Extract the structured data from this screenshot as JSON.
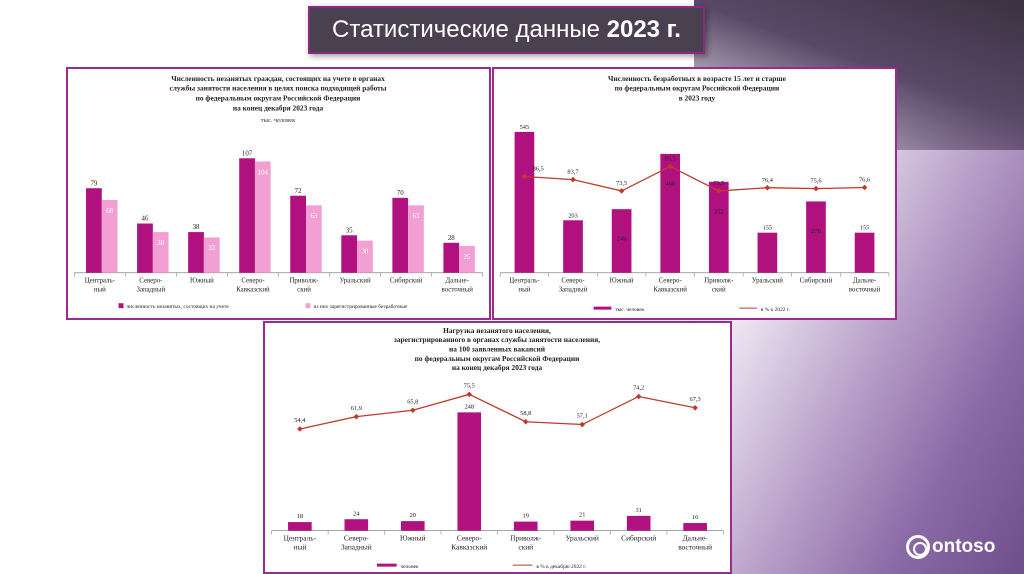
{
  "slide": {
    "title_text": "Статистические данные ",
    "title_year": "2023 г.",
    "logo_text": "ontoso"
  },
  "colors": {
    "magenta": "#b0117f",
    "pink": "#f29fd3",
    "line": "#c0392b",
    "frame": "#9a2b8f"
  },
  "chart_data": [
    {
      "type": "bar",
      "title_lines": [
        "Численность незанятых граждан, состоящих на учете в органах",
        "службы занятости населения в целях поиска подходящей работы",
        "по федеральным округам Российской Федерации",
        "на конец декабря 2023 года"
      ],
      "unit": "тыс. человек",
      "categories": [
        [
          "Централь-",
          "ный"
        ],
        [
          "Северо-",
          "Западный"
        ],
        [
          "Южный"
        ],
        [
          "Северо-",
          "Кавказский"
        ],
        [
          "Приволж-",
          "ский"
        ],
        [
          "Уральский"
        ],
        [
          "Сибирский"
        ],
        [
          "Дальне-",
          "восточный"
        ]
      ],
      "series": [
        {
          "name": "численность незанятых, состоящих на учете",
          "values": [
            79,
            46,
            38,
            107,
            72,
            35,
            70,
            28
          ]
        },
        {
          "name": "из них зарегистрированные безработные",
          "values": [
            68,
            38,
            33,
            104,
            63,
            30,
            63,
            25
          ]
        }
      ],
      "ylim": [
        0,
        115
      ]
    },
    {
      "type": "bar+line",
      "title_lines": [
        "Численность безработных в возрасте 15 лет и старше",
        "по федеральным округам Российской Федерации",
        "в 2023 году"
      ],
      "categories": [
        [
          "Централь-",
          "ный"
        ],
        [
          "Северо-",
          "Западный"
        ],
        [
          "Южный"
        ],
        [
          "Северо-",
          "Кавказский"
        ],
        [
          "Приволж-",
          "ский"
        ],
        [
          "Уральский"
        ],
        [
          "Сибирский"
        ],
        [
          "Дальне-",
          "восточный"
        ]
      ],
      "series": [
        {
          "name": "тыс. человек",
          "kind": "bar",
          "values": [
            545,
            203,
            246,
            460,
            352,
            155,
            276,
            155
          ]
        },
        {
          "name": "в % к 2022 г.",
          "kind": "line",
          "values": [
            86.5,
            83.7,
            73.5,
            95.5,
            73.5,
            76.4,
            75.6,
            76.6
          ]
        }
      ],
      "bar_labels": [
        "545",
        "203",
        "246",
        "460",
        "352",
        "155",
        "276",
        "155"
      ],
      "line_labels": [
        "86,5",
        "83,7",
        "73,5",
        "95,5",
        "73,5",
        "76,4",
        "75,6",
        "76,6"
      ],
      "ylim": [
        0,
        560
      ],
      "y2lim": [
        0,
        130
      ]
    },
    {
      "type": "bar+line",
      "title_lines": [
        "Нагрузка незанятого населения,",
        "зарегистрированного в органах службы занятости населения,",
        "на 100 заявленных вакансий",
        "по федеральным округам Российской Федерации",
        "на конец декабря 2023 года"
      ],
      "categories": [
        [
          "Централь-",
          "ный"
        ],
        [
          "Северо-",
          "Западный"
        ],
        [
          "Южный"
        ],
        [
          "Северо-",
          "Кавказский"
        ],
        [
          "Приволж-",
          "ский"
        ],
        [
          "Уральский"
        ],
        [
          "Сибирский"
        ],
        [
          "Дальне-",
          "восточный"
        ]
      ],
      "series": [
        {
          "name": "человек",
          "kind": "bar",
          "values": [
            18,
            24,
            20,
            248,
            19,
            21,
            31,
            16
          ]
        },
        {
          "name": "в % к декабрю 2022 г.",
          "kind": "line",
          "values": [
            54.4,
            61.9,
            65.8,
            75.5,
            58.8,
            57.1,
            74.2,
            67.3
          ]
        }
      ],
      "bar_labels": [
        "18",
        "24",
        "20",
        "248",
        "19",
        "21",
        "31",
        "16"
      ],
      "line_labels": [
        "54,4",
        "61,9",
        "65,8",
        "75,5",
        "58,8",
        "57,1",
        "74,2",
        "67,3"
      ],
      "ylim": [
        0,
        260
      ],
      "y2lim": [
        0,
        80
      ]
    }
  ]
}
